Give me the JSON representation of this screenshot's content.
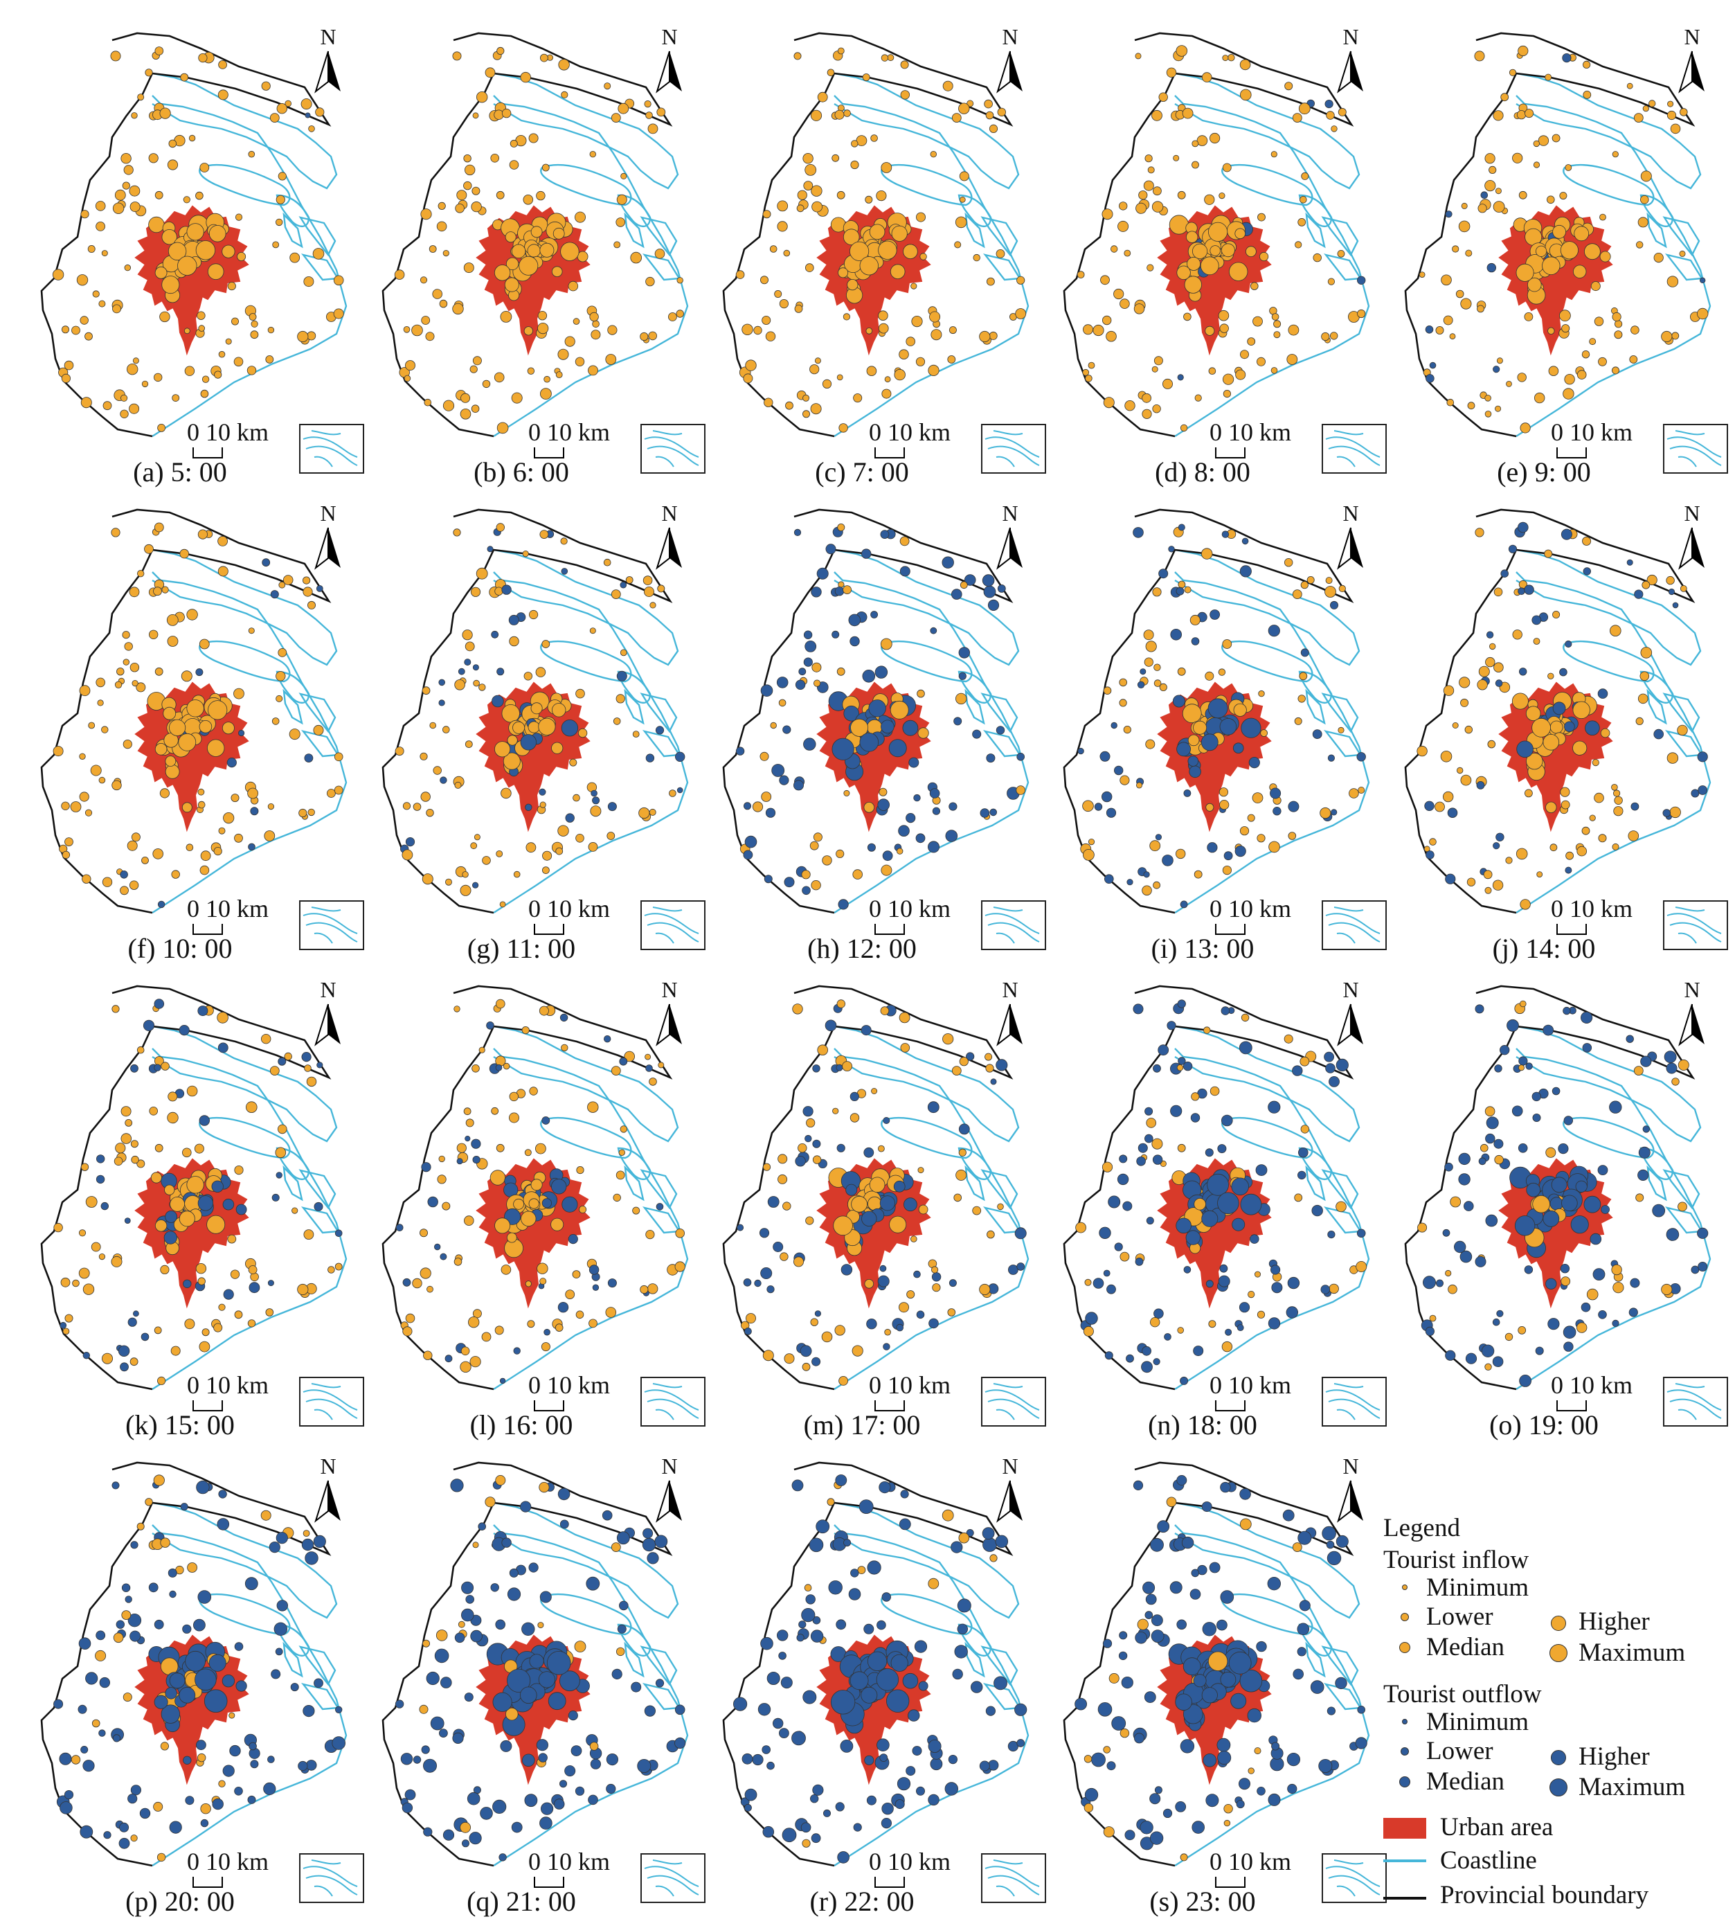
{
  "panels": [
    {
      "label": "(a) 5: 00",
      "inflow": 0.98
    },
    {
      "label": "(b) 6: 00",
      "inflow": 1.0
    },
    {
      "label": "(c) 7: 00",
      "inflow": 1.0
    },
    {
      "label": "(d) 8: 00",
      "inflow": 0.97
    },
    {
      "label": "(e) 9: 00",
      "inflow": 0.92
    },
    {
      "label": "(f) 10: 00",
      "inflow": 0.9
    },
    {
      "label": "(g) 11: 00",
      "inflow": 0.75
    },
    {
      "label": "(h) 12: 00",
      "inflow": 0.35
    },
    {
      "label": "(i) 13: 00",
      "inflow": 0.55
    },
    {
      "label": "(j) 14: 00",
      "inflow": 0.7
    },
    {
      "label": "(k) 15: 00",
      "inflow": 0.65
    },
    {
      "label": "(l) 16: 00",
      "inflow": 0.75
    },
    {
      "label": "(m) 17: 00",
      "inflow": 0.55
    },
    {
      "label": "(n) 18: 00",
      "inflow": 0.35
    },
    {
      "label": "(o) 19: 00",
      "inflow": 0.3
    },
    {
      "label": "(p) 20: 00",
      "inflow": 0.25
    },
    {
      "label": "(q) 21: 00",
      "inflow": 0.1
    },
    {
      "label": "(r) 22: 00",
      "inflow": 0.08
    },
    {
      "label": "(s) 23: 00",
      "inflow": 0.1
    }
  ],
  "map_text": {
    "north": "N",
    "scale": "0 10 km"
  },
  "legend": {
    "title": "Legend",
    "inflow_heading": "Tourist inflow",
    "outflow_heading": "Tourist outflow",
    "classes": [
      "Minimum",
      "Lower",
      "Median",
      "Higher",
      "Maximum"
    ],
    "urban_area": "Urban area",
    "coastline": "Coastline",
    "provincial_boundary": "Provincial boundary"
  },
  "colors": {
    "inflow": "#f0a830",
    "outflow": "#2e5b9a",
    "urban": "#d83a2a",
    "coastline": "#45b6d9",
    "boundary": "#111111"
  }
}
